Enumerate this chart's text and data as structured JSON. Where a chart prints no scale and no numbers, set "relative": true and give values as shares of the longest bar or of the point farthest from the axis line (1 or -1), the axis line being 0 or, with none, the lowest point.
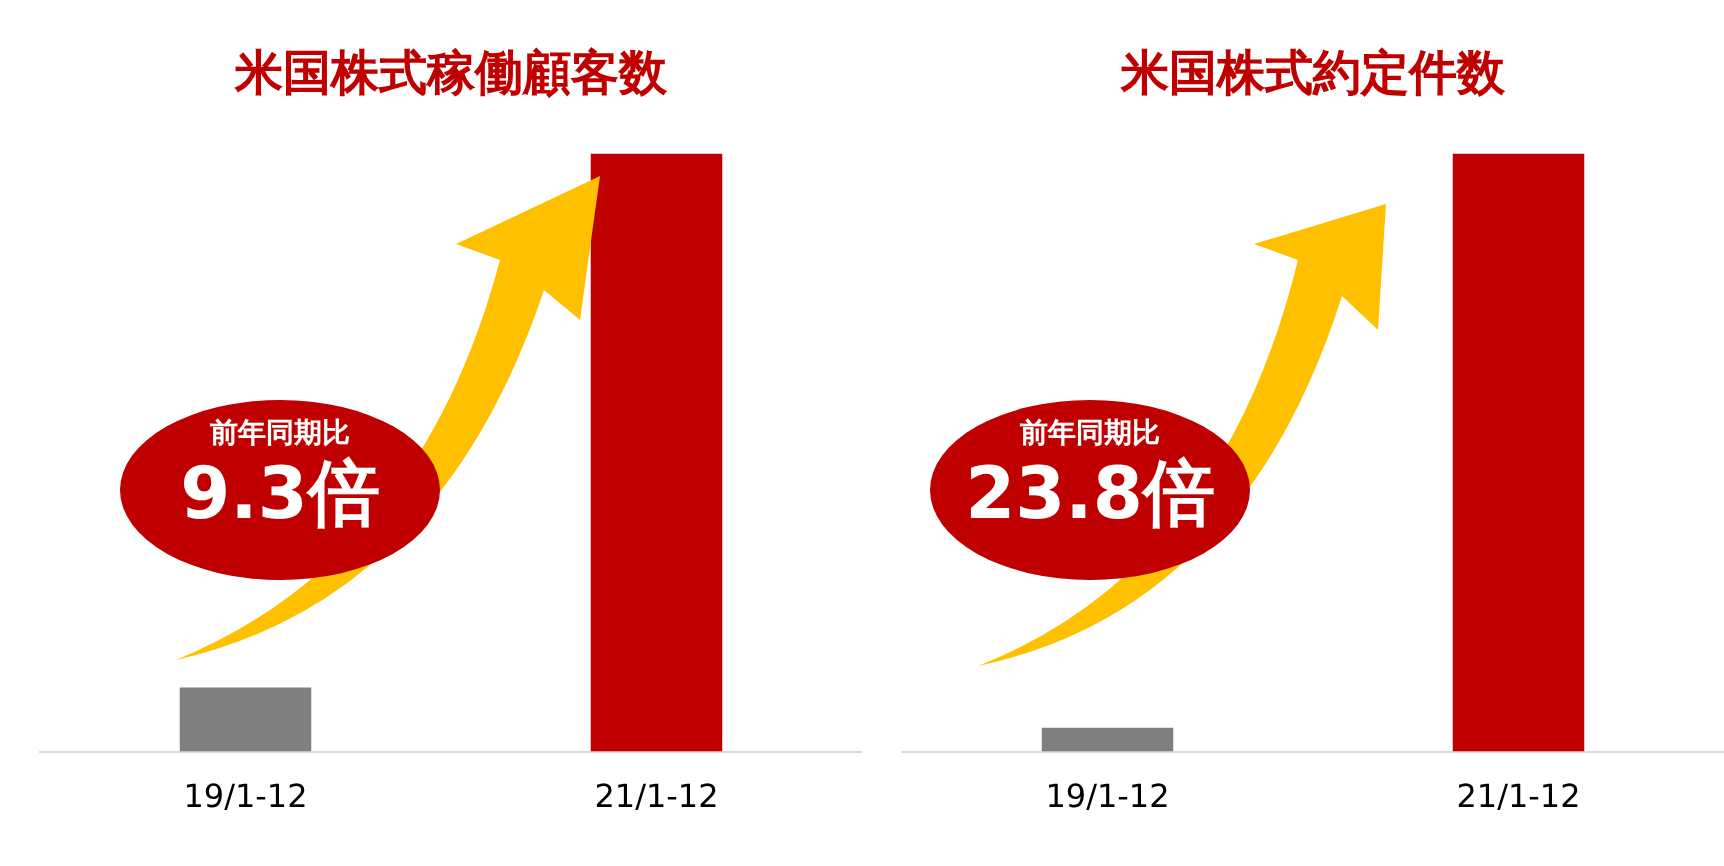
{
  "chart_data": [
    {
      "type": "bar",
      "title": "米国株式稼働顧客数",
      "categories": [
        "19/1-12",
        "21/1-12"
      ],
      "values": [
        0.107,
        1
      ],
      "colors": [
        "#7f7f7f",
        "#c00000"
      ],
      "relative": true,
      "annotations": [
        "前年同期比",
        "9.3倍"
      ]
    },
    {
      "type": "bar",
      "title": "米国株式約定件数",
      "categories": [
        "19/1-12",
        "21/1-12"
      ],
      "values": [
        0.04,
        1
      ],
      "colors": [
        "#7f7f7f",
        "#c00000"
      ],
      "relative": true,
      "annotations": [
        "前年同期比",
        "23.8倍"
      ]
    }
  ]
}
